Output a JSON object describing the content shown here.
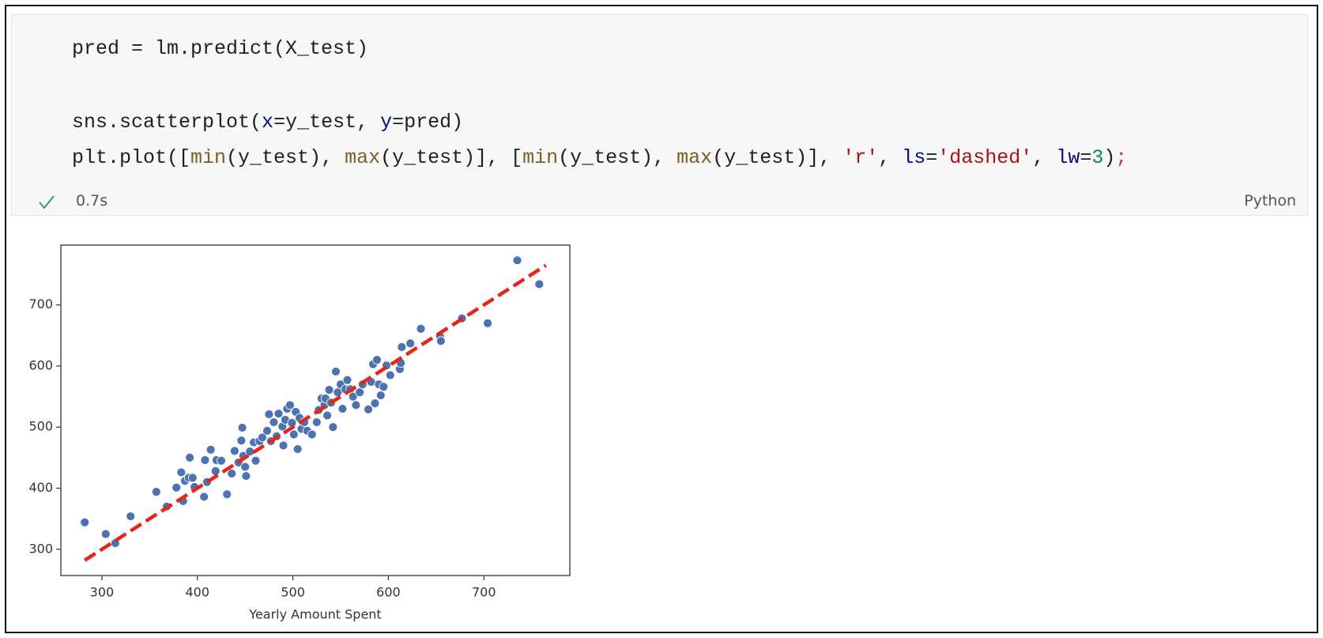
{
  "cell": {
    "code_lines": [
      [
        {
          "text": "pred = lm.predict(X_test)",
          "color": "#1f1f1f"
        }
      ],
      [
        {
          "text": "sns.scatterplot(",
          "color": "#1f1f1f"
        },
        {
          "text": "x",
          "color": "#001080"
        },
        {
          "text": "=y_test, ",
          "color": "#1f1f1f"
        },
        {
          "text": "y",
          "color": "#001080"
        },
        {
          "text": "=pred)",
          "color": "#1f1f1f"
        }
      ],
      [
        {
          "text": "plt.plot([",
          "color": "#1f1f1f"
        },
        {
          "text": "min",
          "color": "#795e26"
        },
        {
          "text": "(y_test), ",
          "color": "#1f1f1f"
        },
        {
          "text": "max",
          "color": "#795e26"
        },
        {
          "text": "(y_test)], [",
          "color": "#1f1f1f"
        },
        {
          "text": "min",
          "color": "#795e26"
        },
        {
          "text": "(y_test), ",
          "color": "#1f1f1f"
        },
        {
          "text": "max",
          "color": "#795e26"
        },
        {
          "text": "(y_test)], ",
          "color": "#1f1f1f"
        },
        {
          "text": "'r'",
          "color": "#a31515"
        },
        {
          "text": ", ",
          "color": "#1f1f1f"
        },
        {
          "text": "ls",
          "color": "#001080"
        },
        {
          "text": "=",
          "color": "#1f1f1f"
        },
        {
          "text": "'dashed'",
          "color": "#a31515"
        },
        {
          "text": ", ",
          "color": "#1f1f1f"
        },
        {
          "text": "lw",
          "color": "#001080"
        },
        {
          "text": "=",
          "color": "#1f1f1f"
        },
        {
          "text": "3",
          "color": "#098658"
        },
        {
          "text": ")",
          "color": "#1f1f1f"
        },
        {
          "text": ";",
          "color": "#c0392b"
        }
      ]
    ],
    "exec_time": "0.7s",
    "language": "Python"
  },
  "chart_data": {
    "type": "scatter",
    "xlabel": "Yearly Amount Spent",
    "xlim": [
      257,
      790
    ],
    "ylim": [
      257,
      798
    ],
    "xticks": [
      300,
      400,
      500,
      600,
      700
    ],
    "yticks": [
      300,
      400,
      500,
      600,
      700
    ],
    "series": [
      {
        "type": "scatter",
        "color": "#4c72b0",
        "x": [
          282,
          304,
          314,
          330,
          357,
          368,
          378,
          383,
          385,
          387,
          391,
          392,
          395,
          397,
          407,
          408,
          410,
          414,
          419,
          420,
          425,
          431,
          436,
          439,
          443,
          446,
          447,
          448,
          450,
          451,
          455,
          459,
          461,
          465,
          468,
          473,
          475,
          477,
          480,
          483,
          485,
          489,
          490,
          492,
          494,
          497,
          499,
          501,
          503,
          505,
          507,
          509,
          512,
          515,
          520,
          525,
          527,
          530,
          533,
          534,
          536,
          538,
          540,
          542,
          545,
          547,
          550,
          552,
          555,
          557,
          560,
          563,
          566,
          570,
          573,
          579,
          582,
          584,
          586,
          588,
          590,
          592,
          595,
          598,
          602,
          612,
          613,
          614,
          623,
          634,
          654,
          655,
          677,
          704,
          735,
          758
        ],
        "values": [
          344,
          325,
          310,
          354,
          394,
          370,
          401,
          426,
          379,
          412,
          417,
          450,
          417,
          402,
          386,
          446,
          410,
          463,
          428,
          446,
          445,
          390,
          424,
          461,
          442,
          478,
          499,
          453,
          435,
          420,
          460,
          475,
          445,
          477,
          483,
          494,
          521,
          477,
          508,
          485,
          522,
          501,
          470,
          512,
          530,
          536,
          507,
          488,
          525,
          464,
          515,
          497,
          508,
          494,
          488,
          508,
          528,
          547,
          536,
          547,
          519,
          561,
          540,
          500,
          591,
          557,
          570,
          530,
          562,
          577,
          562,
          550,
          536,
          557,
          570,
          529,
          574,
          603,
          539,
          610,
          570,
          552,
          566,
          601,
          585,
          595,
          605,
          631,
          637,
          661,
          649,
          641,
          678,
          670,
          773,
          734
        ]
      },
      {
        "type": "line",
        "color": "#e8231a",
        "line_style": "dashed",
        "x": [
          282,
          765
        ],
        "values": [
          282,
          765
        ]
      }
    ]
  }
}
